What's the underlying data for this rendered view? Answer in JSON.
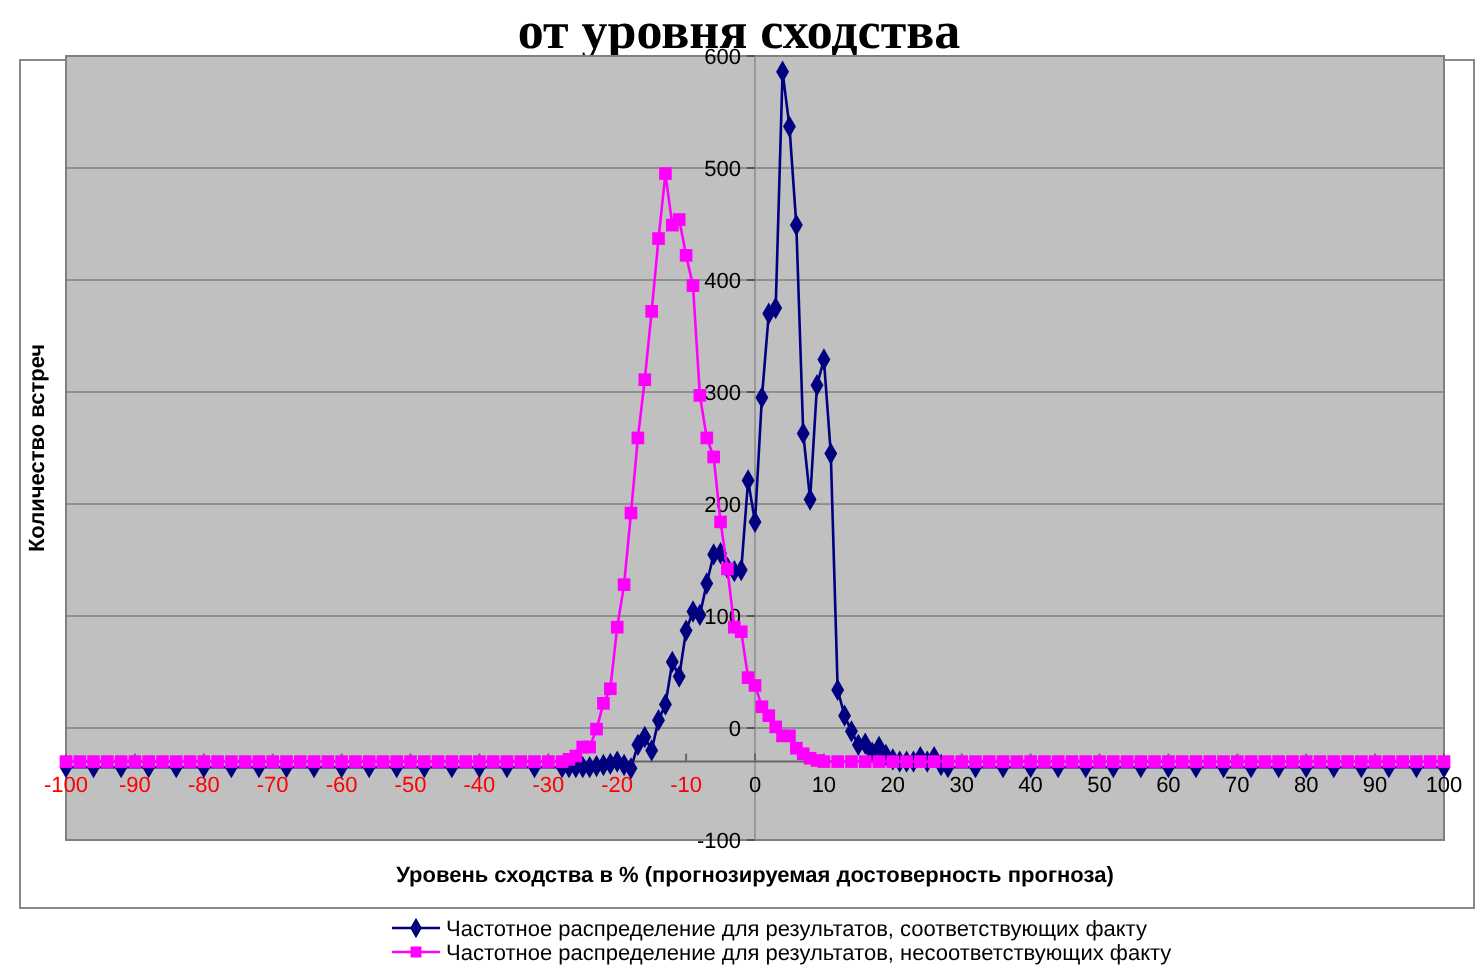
{
  "chart_data": {
    "type": "line",
    "title": "от уровня сходства",
    "xlabel": "Уровень сходства в % (прогнозируемая достоверность прогноза)",
    "ylabel": "Количество встреч",
    "xlim": [
      -100,
      100
    ],
    "xticks": [
      -100,
      -90,
      -80,
      -70,
      -60,
      -50,
      -40,
      -30,
      -20,
      -10,
      0,
      10,
      20,
      30,
      40,
      50,
      60,
      70,
      80,
      90,
      100
    ],
    "ylim": [
      -100,
      600
    ],
    "yticks": [
      -100,
      0,
      100,
      200,
      300,
      400,
      500,
      600
    ],
    "grid": "y",
    "legend": "bottom",
    "series": [
      {
        "name": "Частотное распределение для результатов, соответствующих факту",
        "color": "#000080",
        "marker": "diamond",
        "x": [
          -100,
          -96,
          -92,
          -88,
          -84,
          -80,
          -76,
          -72,
          -68,
          -64,
          -60,
          -56,
          -52,
          -48,
          -44,
          -40,
          -36,
          -32,
          -28,
          -27,
          -26,
          -25,
          -24,
          -23,
          -22,
          -21,
          -20,
          -19,
          -18,
          -17,
          -16,
          -15,
          -14,
          -13,
          -12,
          -11,
          -10,
          -9,
          -8,
          -7,
          -6,
          -5,
          -4,
          -3,
          -2,
          -1,
          0,
          1,
          2,
          3,
          4,
          5,
          6,
          7,
          8,
          9,
          10,
          11,
          12,
          13,
          14,
          15,
          16,
          17,
          18,
          19,
          20,
          21,
          22,
          23,
          24,
          25,
          26,
          27,
          28,
          32,
          36,
          40,
          44,
          48,
          52,
          56,
          60,
          64,
          68,
          72,
          76,
          80,
          84,
          88,
          92,
          96,
          100
        ],
        "values": [
          -35,
          -35,
          -35,
          -35,
          -35,
          -35,
          -35,
          -35,
          -35,
          -35,
          -35,
          -35,
          -35,
          -35,
          -35,
          -35,
          -35,
          -35,
          -35,
          -35,
          -35,
          -35,
          -35,
          -34,
          -33,
          -32,
          -30,
          -33,
          -36,
          -15,
          -8,
          -20,
          7,
          21,
          59,
          46,
          87,
          104,
          101,
          129,
          155,
          156,
          143,
          140,
          141,
          221,
          184,
          295,
          370,
          375,
          586,
          537,
          449,
          263,
          204,
          306,
          329,
          245,
          34,
          11,
          -3,
          -15,
          -14,
          -22,
          -17,
          -24,
          -28,
          -30,
          -30,
          -30,
          -26,
          -30,
          -26,
          -33,
          -35,
          -35,
          -35,
          -35,
          -35,
          -35,
          -35,
          -35,
          -35,
          -35,
          -35,
          -35,
          -35,
          -35,
          -35,
          -35,
          -35,
          -35,
          -35
        ]
      },
      {
        "name": "Частотное распределение для результатов, несоответствующих факту",
        "color": "#ff00ff",
        "marker": "square",
        "x": [
          -100,
          -98,
          -96,
          -94,
          -92,
          -90,
          -88,
          -86,
          -84,
          -82,
          -80,
          -78,
          -76,
          -74,
          -72,
          -70,
          -68,
          -66,
          -64,
          -62,
          -60,
          -58,
          -56,
          -54,
          -52,
          -50,
          -48,
          -46,
          -44,
          -42,
          -40,
          -38,
          -36,
          -34,
          -32,
          -30,
          -28,
          -27,
          -26,
          -25,
          -24,
          -23,
          -22,
          -21,
          -20,
          -19,
          -18,
          -17,
          -16,
          -15,
          -14,
          -13,
          -12,
          -11,
          -10,
          -9,
          -8,
          -7,
          -6,
          -5,
          -4,
          -3,
          -2,
          -1,
          0,
          1,
          2,
          3,
          4,
          5,
          6,
          7,
          8,
          9,
          10,
          12,
          14,
          16,
          18,
          20,
          22,
          24,
          26,
          28,
          30,
          32,
          34,
          36,
          38,
          40,
          42,
          44,
          46,
          48,
          50,
          52,
          54,
          56,
          58,
          60,
          62,
          64,
          66,
          68,
          70,
          72,
          74,
          76,
          78,
          80,
          82,
          84,
          86,
          88,
          90,
          92,
          94,
          96,
          98,
          100
        ],
        "values": [
          -30,
          -30,
          -30,
          -30,
          -30,
          -30,
          -30,
          -30,
          -30,
          -30,
          -30,
          -30,
          -30,
          -30,
          -30,
          -30,
          -30,
          -30,
          -30,
          -30,
          -30,
          -30,
          -30,
          -30,
          -30,
          -30,
          -30,
          -30,
          -30,
          -30,
          -30,
          -30,
          -30,
          -30,
          -30,
          -30,
          -30,
          -28,
          -25,
          -17,
          -17,
          -1,
          22,
          35,
          90,
          128,
          192,
          259,
          311,
          372,
          437,
          495,
          449,
          454,
          422,
          395,
          297,
          259,
          242,
          184,
          142,
          90,
          86,
          45,
          38,
          19,
          11,
          1,
          -7,
          -7,
          -18,
          -23,
          -27,
          -29,
          -30,
          -30,
          -30,
          -30,
          -30,
          -30,
          -30,
          -30,
          -30,
          -30,
          -30,
          -30,
          -30,
          -30,
          -30,
          -30,
          -30,
          -30,
          -30,
          -30,
          -30,
          -30,
          -30,
          -30,
          -30,
          -30,
          -30,
          -30,
          -30,
          -30,
          -30,
          -30,
          -30,
          -30,
          -30,
          -30,
          -30,
          -30,
          -30,
          -30,
          -30,
          -30,
          -30,
          -30,
          -30,
          -30
        ]
      }
    ]
  }
}
